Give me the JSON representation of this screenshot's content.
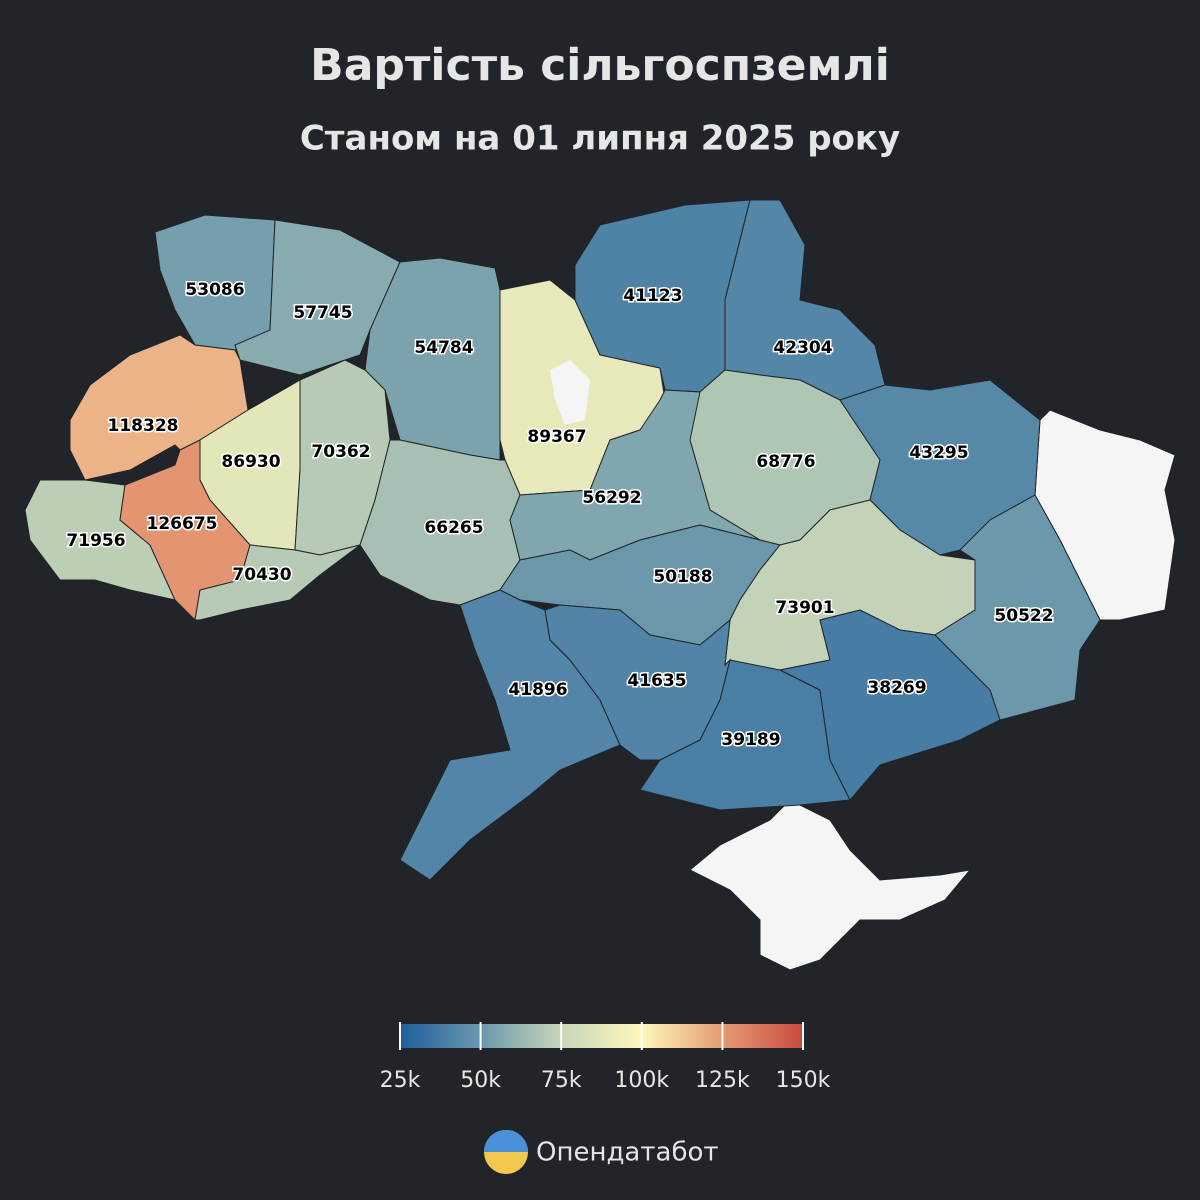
{
  "chart_data": {
    "type": "choropleth",
    "title": "Вартість сільгоспземлі",
    "subtitle": "Станом на 01 липня 2025 року",
    "values": [
      53086,
      57745,
      54784,
      89367,
      41123,
      42304,
      118328,
      86930,
      70362,
      68776,
      43295,
      71956,
      126675,
      70430,
      66265,
      56292,
      50188,
      73901,
      50522,
      41896,
      41635,
      39189,
      38269
    ],
    "colorlim": [
      25000,
      150000
    ],
    "colorticks": [
      {
        "value": 25000,
        "label": "25k"
      },
      {
        "value": 50000,
        "label": "50k"
      },
      {
        "value": 75000,
        "label": "75k"
      },
      {
        "value": 100000,
        "label": "100k"
      },
      {
        "value": 125000,
        "label": "125k"
      },
      {
        "value": 150000,
        "label": "150k"
      }
    ],
    "colors": [
      "#1f5f9e",
      "#6a97ab",
      "#c7d6b8",
      "#fff7bb",
      "#e59a75",
      "#c94b3f"
    ],
    "source": "Опендатабот"
  }
}
